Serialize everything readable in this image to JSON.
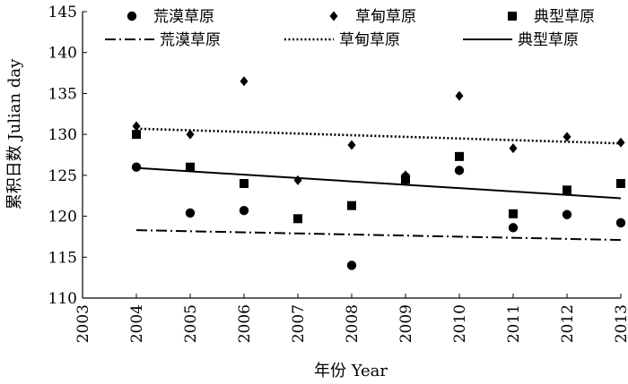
{
  "chart_data": {
    "type": "scatter",
    "title": "",
    "xlabel": "年份 Year",
    "ylabel": "累积日数 Julian day",
    "x_ticks": [
      "2003",
      "2004",
      "2005",
      "2006",
      "2007",
      "2008",
      "2009",
      "2010",
      "2011",
      "2012",
      "2013"
    ],
    "y_ticks": [
      "110",
      "115",
      "120",
      "125",
      "130",
      "135",
      "140",
      "145"
    ],
    "xlim": [
      2003,
      2013
    ],
    "ylim": [
      110,
      145
    ],
    "grid": false,
    "legend_position": "top",
    "series": [
      {
        "name": "荒漠草原",
        "marker": "circle",
        "points": [
          [
            2004,
            126.0
          ],
          [
            2005,
            120.4
          ],
          [
            2006,
            120.7
          ],
          [
            2008,
            114.0
          ],
          [
            2009,
            124.8
          ],
          [
            2010,
            125.6
          ],
          [
            2011,
            118.6
          ],
          [
            2012,
            120.2
          ],
          [
            2013,
            119.2
          ]
        ]
      },
      {
        "name": "草甸草原",
        "marker": "diamond",
        "points": [
          [
            2004,
            131.0
          ],
          [
            2005,
            130.0
          ],
          [
            2006,
            136.5
          ],
          [
            2007,
            124.4
          ],
          [
            2008,
            128.7
          ],
          [
            2009,
            125.0
          ],
          [
            2010,
            134.7
          ],
          [
            2011,
            128.3
          ],
          [
            2012,
            129.7
          ],
          [
            2013,
            129.0
          ]
        ]
      },
      {
        "name": "典型草原",
        "marker": "square",
        "points": [
          [
            2004,
            130.0
          ],
          [
            2005,
            126.0
          ],
          [
            2006,
            124.0
          ],
          [
            2007,
            119.7
          ],
          [
            2008,
            121.3
          ],
          [
            2009,
            124.5
          ],
          [
            2010,
            127.3
          ],
          [
            2011,
            120.3
          ],
          [
            2012,
            123.2
          ],
          [
            2013,
            124.0
          ]
        ]
      }
    ],
    "trendlines": [
      {
        "name": "荒漠草原",
        "style": "dash-dot",
        "from": [
          2004,
          118.3
        ],
        "to": [
          2013,
          117.1
        ]
      },
      {
        "name": "草甸草原",
        "style": "dotted",
        "from": [
          2004,
          130.7
        ],
        "to": [
          2013,
          128.9
        ]
      },
      {
        "name": "典型草原",
        "style": "solid",
        "from": [
          2004,
          125.9
        ],
        "to": [
          2013,
          122.2
        ]
      }
    ]
  }
}
